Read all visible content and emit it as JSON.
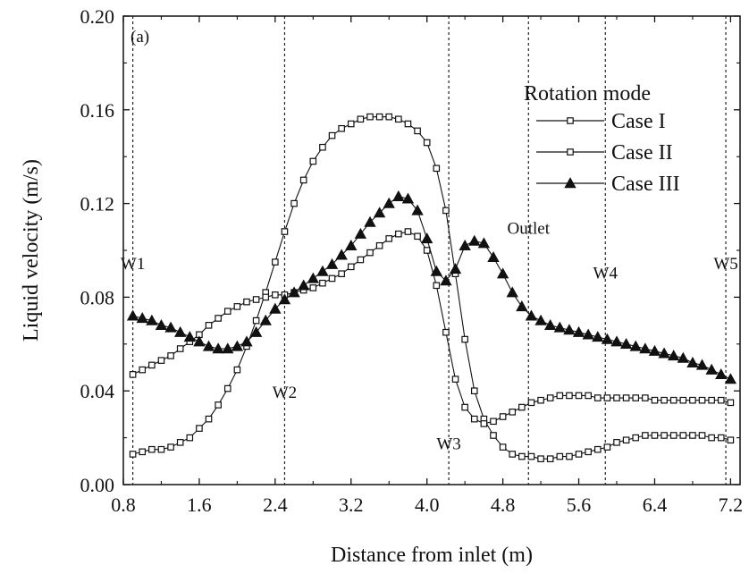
{
  "chart_data": {
    "type": "line",
    "panel_label": "(a)",
    "xlabel": "Distance from inlet (m)",
    "ylabel": "Liquid velocity (m/s)",
    "xlim": [
      0.8,
      7.3
    ],
    "ylim": [
      0.0,
      0.2
    ],
    "xticks": [
      0.8,
      1.6,
      2.4,
      3.2,
      4.0,
      4.8,
      5.6,
      6.4,
      7.2
    ],
    "xtick_labels": [
      "0.8",
      "1.6",
      "2.4",
      "3.2",
      "4.0",
      "4.8",
      "5.6",
      "6.4",
      "7.2"
    ],
    "yticks": [
      0.0,
      0.04,
      0.08,
      0.12,
      0.16,
      0.2
    ],
    "ytick_labels": [
      "0.00",
      "0.04",
      "0.08",
      "0.12",
      "0.16",
      "0.20"
    ],
    "legend": {
      "title": "Rotation mode",
      "placement": "top-right"
    },
    "grid": false,
    "vertical_lines": [
      {
        "x": 0.9,
        "label": "W1",
        "label_y": 0.092
      },
      {
        "x": 2.5,
        "label": "W2",
        "label_y": 0.037
      },
      {
        "x": 4.23,
        "label": "W3",
        "label_y": 0.015
      },
      {
        "x": 5.07,
        "label": "Outlet",
        "label_y": 0.107
      },
      {
        "x": 5.88,
        "label": "W4",
        "label_y": 0.088
      },
      {
        "x": 7.15,
        "label": "W5",
        "label_y": 0.092
      }
    ],
    "series": [
      {
        "name": "Case I",
        "marker": "square-open",
        "x": [
          0.9,
          1.0,
          1.1,
          1.2,
          1.3,
          1.4,
          1.5,
          1.6,
          1.7,
          1.8,
          1.9,
          2.0,
          2.1,
          2.2,
          2.3,
          2.4,
          2.5,
          2.6,
          2.7,
          2.8,
          2.9,
          3.0,
          3.1,
          3.2,
          3.3,
          3.4,
          3.5,
          3.6,
          3.7,
          3.8,
          3.9,
          4.0,
          4.1,
          4.2,
          4.3,
          4.4,
          4.5,
          4.6,
          4.7,
          4.8,
          4.9,
          5.0,
          5.1,
          5.2,
          5.3,
          5.4,
          5.5,
          5.6,
          5.7,
          5.8,
          5.9,
          6.0,
          6.1,
          6.2,
          6.3,
          6.4,
          6.5,
          6.6,
          6.7,
          6.8,
          6.9,
          7.0,
          7.1,
          7.2
        ],
        "y": [
          0.013,
          0.014,
          0.015,
          0.015,
          0.016,
          0.018,
          0.02,
          0.024,
          0.028,
          0.034,
          0.041,
          0.049,
          0.059,
          0.07,
          0.082,
          0.095,
          0.108,
          0.12,
          0.13,
          0.138,
          0.144,
          0.149,
          0.152,
          0.154,
          0.156,
          0.157,
          0.157,
          0.157,
          0.156,
          0.154,
          0.151,
          0.146,
          0.135,
          0.117,
          0.09,
          0.062,
          0.04,
          0.028,
          0.021,
          0.016,
          0.013,
          0.012,
          0.012,
          0.011,
          0.011,
          0.012,
          0.012,
          0.013,
          0.014,
          0.015,
          0.016,
          0.018,
          0.019,
          0.02,
          0.021,
          0.021,
          0.021,
          0.021,
          0.021,
          0.021,
          0.021,
          0.02,
          0.02,
          0.019
        ]
      },
      {
        "name": "Case II",
        "marker": "square-open",
        "x": [
          0.9,
          1.0,
          1.1,
          1.2,
          1.3,
          1.4,
          1.5,
          1.6,
          1.7,
          1.8,
          1.9,
          2.0,
          2.1,
          2.2,
          2.3,
          2.4,
          2.5,
          2.6,
          2.7,
          2.8,
          2.9,
          3.0,
          3.1,
          3.2,
          3.3,
          3.4,
          3.5,
          3.6,
          3.7,
          3.8,
          3.9,
          4.0,
          4.1,
          4.2,
          4.3,
          4.4,
          4.5,
          4.6,
          4.7,
          4.8,
          4.9,
          5.0,
          5.1,
          5.2,
          5.3,
          5.4,
          5.5,
          5.6,
          5.7,
          5.8,
          5.9,
          6.0,
          6.1,
          6.2,
          6.3,
          6.4,
          6.5,
          6.6,
          6.7,
          6.8,
          6.9,
          7.0,
          7.1,
          7.2
        ],
        "y": [
          0.047,
          0.049,
          0.051,
          0.053,
          0.055,
          0.058,
          0.061,
          0.064,
          0.068,
          0.071,
          0.074,
          0.076,
          0.078,
          0.079,
          0.08,
          0.081,
          0.081,
          0.082,
          0.083,
          0.084,
          0.086,
          0.088,
          0.09,
          0.093,
          0.096,
          0.099,
          0.102,
          0.105,
          0.107,
          0.108,
          0.106,
          0.1,
          0.085,
          0.065,
          0.045,
          0.033,
          0.028,
          0.026,
          0.027,
          0.029,
          0.031,
          0.033,
          0.035,
          0.036,
          0.037,
          0.038,
          0.038,
          0.038,
          0.038,
          0.037,
          0.037,
          0.037,
          0.037,
          0.037,
          0.037,
          0.036,
          0.036,
          0.036,
          0.036,
          0.036,
          0.036,
          0.036,
          0.036,
          0.035
        ]
      },
      {
        "name": "Case III",
        "marker": "triangle-filled",
        "x": [
          0.9,
          1.0,
          1.1,
          1.2,
          1.3,
          1.4,
          1.5,
          1.6,
          1.7,
          1.8,
          1.9,
          2.0,
          2.1,
          2.2,
          2.3,
          2.4,
          2.5,
          2.6,
          2.7,
          2.8,
          2.9,
          3.0,
          3.1,
          3.2,
          3.3,
          3.4,
          3.5,
          3.6,
          3.7,
          3.8,
          3.9,
          4.0,
          4.1,
          4.2,
          4.3,
          4.4,
          4.5,
          4.6,
          4.7,
          4.8,
          4.9,
          5.0,
          5.1,
          5.2,
          5.3,
          5.4,
          5.5,
          5.6,
          5.7,
          5.8,
          5.9,
          6.0,
          6.1,
          6.2,
          6.3,
          6.4,
          6.5,
          6.6,
          6.7,
          6.8,
          6.9,
          7.0,
          7.1,
          7.2
        ],
        "y": [
          0.072,
          0.071,
          0.07,
          0.068,
          0.067,
          0.065,
          0.063,
          0.061,
          0.059,
          0.058,
          0.058,
          0.059,
          0.061,
          0.065,
          0.07,
          0.075,
          0.079,
          0.082,
          0.085,
          0.088,
          0.091,
          0.094,
          0.098,
          0.102,
          0.107,
          0.112,
          0.116,
          0.12,
          0.123,
          0.122,
          0.117,
          0.105,
          0.091,
          0.087,
          0.092,
          0.102,
          0.104,
          0.103,
          0.097,
          0.09,
          0.082,
          0.076,
          0.072,
          0.07,
          0.068,
          0.067,
          0.066,
          0.065,
          0.064,
          0.063,
          0.062,
          0.061,
          0.06,
          0.059,
          0.058,
          0.057,
          0.056,
          0.055,
          0.054,
          0.052,
          0.051,
          0.049,
          0.047,
          0.045
        ]
      }
    ]
  }
}
